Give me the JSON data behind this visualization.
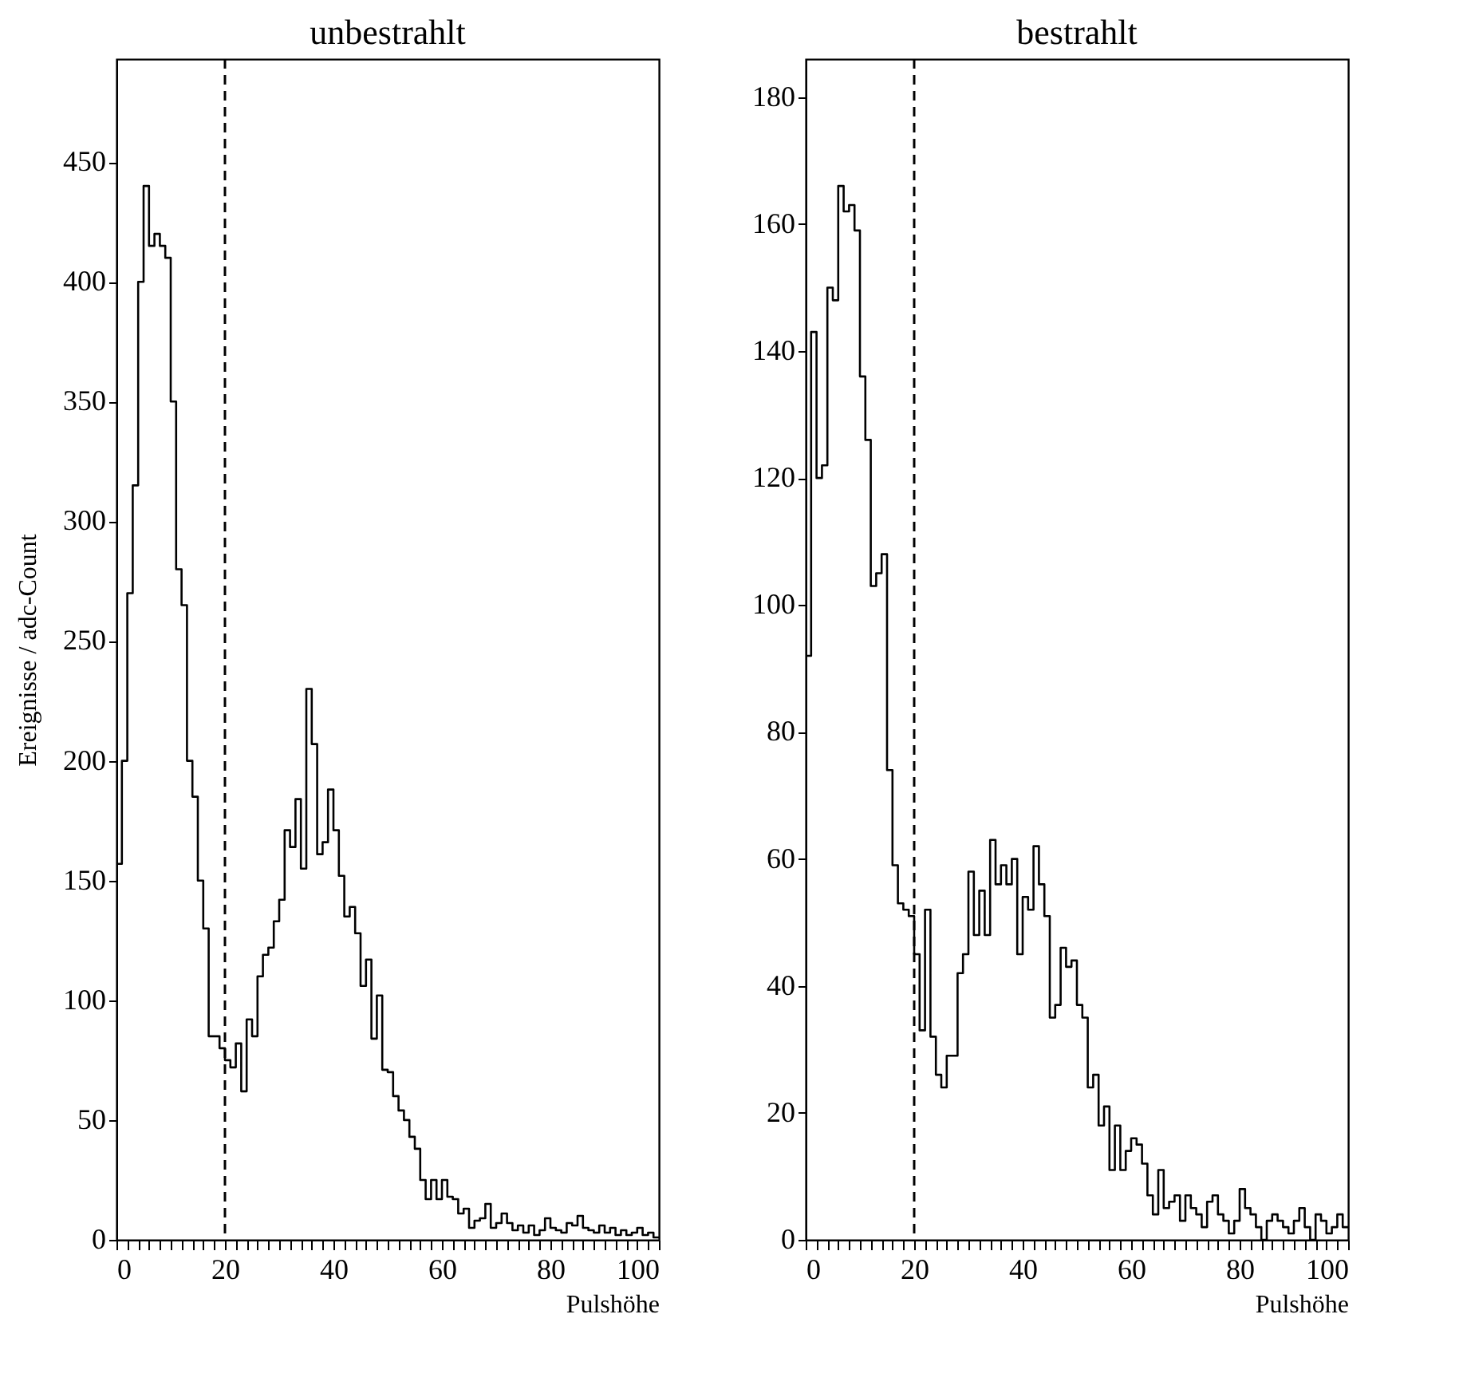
{
  "chart_data": [
    {
      "type": "histogram",
      "title": "unbestrahlt",
      "xlabel": "Pulshöhe",
      "ylabel": "Ereignisse / adc-Count",
      "color": "#000000",
      "grid": false,
      "bins": [
        0,
        1,
        2,
        3,
        4,
        5,
        6,
        7,
        8,
        9,
        10,
        11,
        12,
        13,
        14,
        15,
        16,
        17,
        18,
        19,
        20,
        21,
        22,
        23,
        24,
        25,
        26,
        27,
        28,
        29,
        30,
        31,
        32,
        33,
        34,
        35,
        36,
        37,
        38,
        39,
        40,
        41,
        42,
        43,
        44,
        45,
        46,
        47,
        48,
        49,
        50,
        51,
        52,
        53,
        54,
        55,
        56,
        57,
        58,
        59,
        60,
        61,
        62,
        63,
        64,
        65,
        66,
        67,
        68,
        69,
        70,
        71,
        72,
        73,
        74,
        75,
        76,
        77,
        78,
        79,
        80,
        81,
        82,
        83,
        84,
        85,
        86,
        87,
        88,
        89,
        90,
        91,
        92,
        93,
        94,
        95,
        96,
        97,
        98,
        99,
        100
      ],
      "values": [
        157,
        200,
        270,
        315,
        400,
        440,
        415,
        420,
        415,
        410,
        350,
        280,
        265,
        200,
        185,
        150,
        130,
        85,
        85,
        80,
        75,
        72,
        82,
        62,
        92,
        85,
        110,
        119,
        122,
        133,
        142,
        171,
        164,
        184,
        155,
        230,
        207,
        161,
        166,
        188,
        171,
        152,
        135,
        139,
        128,
        106,
        117,
        84,
        102,
        71,
        70,
        60,
        54,
        50,
        43,
        38,
        25,
        17,
        25,
        17,
        25,
        18,
        17,
        11,
        13,
        5,
        8,
        9,
        15,
        5,
        7,
        11,
        7,
        4,
        6,
        3,
        6,
        2,
        4,
        9,
        5,
        4,
        3,
        7,
        6,
        10,
        5,
        4,
        3,
        6,
        3,
        5,
        2,
        4,
        2,
        3,
        5,
        2,
        3,
        1
      ],
      "xlim": [
        0,
        100
      ],
      "xticks": [
        0,
        {
          "value": 2,
          "label": null
        },
        {
          "value": 4,
          "label": null
        },
        {
          "value": 6,
          "label": null
        },
        {
          "value": 8,
          "label": null
        },
        {
          "value": 10,
          "label": null
        },
        {
          "value": 12,
          "label": null
        },
        {
          "value": 14,
          "label": null
        },
        {
          "value": 16,
          "label": null
        },
        {
          "value": 18,
          "label": null
        },
        20,
        {
          "value": 22,
          "label": null
        },
        {
          "value": 24,
          "label": null
        },
        {
          "value": 26,
          "label": null
        },
        {
          "value": 28,
          "label": null
        },
        {
          "value": 30,
          "label": null
        },
        {
          "value": 32,
          "label": null
        },
        {
          "value": 34,
          "label": null
        },
        {
          "value": 36,
          "label": null
        },
        {
          "value": 38,
          "label": null
        },
        40,
        {
          "value": 42,
          "label": null
        },
        {
          "value": 44,
          "label": null
        },
        {
          "value": 46,
          "label": null
        },
        {
          "value": 48,
          "label": null
        },
        {
          "value": 50,
          "label": null
        },
        {
          "value": 52,
          "label": null
        },
        {
          "value": 54,
          "label": null
        },
        {
          "value": 56,
          "label": null
        },
        {
          "value": 58,
          "label": null
        },
        60,
        {
          "value": 62,
          "label": null
        },
        {
          "value": 64,
          "label": null
        },
        {
          "value": 66,
          "label": null
        },
        {
          "value": 68,
          "label": null
        },
        {
          "value": 70,
          "label": null
        },
        {
          "value": 72,
          "label": null
        },
        {
          "value": 74,
          "label": null
        },
        {
          "value": 76,
          "label": null
        },
        {
          "value": 78,
          "label": null
        },
        80,
        {
          "value": 82,
          "label": null
        },
        {
          "value": 84,
          "label": null
        },
        {
          "value": 86,
          "label": null
        },
        {
          "value": 88,
          "label": null
        },
        {
          "value": 90,
          "label": null
        },
        {
          "value": 92,
          "label": null
        },
        {
          "value": 94,
          "label": null
        },
        {
          "value": 96,
          "label": null
        },
        {
          "value": 98,
          "label": null
        },
        100
      ],
      "ylim": [
        0,
        493
      ],
      "yticks": [
        0,
        50,
        100,
        150,
        200,
        250,
        300,
        350,
        400,
        450
      ],
      "ref_lines": [
        {
          "axis": "x",
          "value": 20,
          "line_style": "dashed"
        }
      ]
    },
    {
      "type": "histogram",
      "title": "bestrahlt",
      "xlabel": "Pulshöhe",
      "color": "#000000",
      "grid": false,
      "bins": [
        0,
        1,
        2,
        3,
        4,
        5,
        6,
        7,
        8,
        9,
        10,
        11,
        12,
        13,
        14,
        15,
        16,
        17,
        18,
        19,
        20,
        21,
        22,
        23,
        24,
        25,
        26,
        27,
        28,
        29,
        30,
        31,
        32,
        33,
        34,
        35,
        36,
        37,
        38,
        39,
        40,
        41,
        42,
        43,
        44,
        45,
        46,
        47,
        48,
        49,
        50,
        51,
        52,
        53,
        54,
        55,
        56,
        57,
        58,
        59,
        60,
        61,
        62,
        63,
        64,
        65,
        66,
        67,
        68,
        69,
        70,
        71,
        72,
        73,
        74,
        75,
        76,
        77,
        78,
        79,
        80,
        81,
        82,
        83,
        84,
        85,
        86,
        87,
        88,
        89,
        90,
        91,
        92,
        93,
        94,
        95,
        96,
        97,
        98,
        99,
        100
      ],
      "values": [
        92,
        143,
        120,
        122,
        150,
        148,
        166,
        162,
        163,
        159,
        136,
        126,
        103,
        105,
        108,
        74,
        59,
        53,
        52,
        51,
        45,
        33,
        52,
        32,
        26,
        24,
        29,
        29,
        42,
        45,
        58,
        48,
        55,
        48,
        63,
        56,
        59,
        56,
        60,
        45,
        54,
        52,
        62,
        56,
        51,
        35,
        37,
        46,
        43,
        44,
        37,
        35,
        24,
        26,
        18,
        21,
        11,
        18,
        11,
        14,
        16,
        15,
        12,
        7,
        4,
        11,
        5,
        6,
        7,
        3,
        7,
        5,
        4,
        2,
        6,
        7,
        4,
        3,
        1,
        3,
        8,
        5,
        4,
        2,
        0,
        3,
        4,
        3,
        2,
        1,
        3,
        5,
        2,
        0,
        4,
        3,
        1,
        2,
        4,
        2
      ],
      "xlim": [
        0,
        100
      ],
      "xticks": [
        0,
        {
          "value": 2,
          "label": null
        },
        {
          "value": 4,
          "label": null
        },
        {
          "value": 6,
          "label": null
        },
        {
          "value": 8,
          "label": null
        },
        {
          "value": 10,
          "label": null
        },
        {
          "value": 12,
          "label": null
        },
        {
          "value": 14,
          "label": null
        },
        {
          "value": 16,
          "label": null
        },
        {
          "value": 18,
          "label": null
        },
        20,
        {
          "value": 22,
          "label": null
        },
        {
          "value": 24,
          "label": null
        },
        {
          "value": 26,
          "label": null
        },
        {
          "value": 28,
          "label": null
        },
        {
          "value": 30,
          "label": null
        },
        {
          "value": 32,
          "label": null
        },
        {
          "value": 34,
          "label": null
        },
        {
          "value": 36,
          "label": null
        },
        {
          "value": 38,
          "label": null
        },
        40,
        {
          "value": 42,
          "label": null
        },
        {
          "value": 44,
          "label": null
        },
        {
          "value": 46,
          "label": null
        },
        {
          "value": 48,
          "label": null
        },
        {
          "value": 50,
          "label": null
        },
        {
          "value": 52,
          "label": null
        },
        {
          "value": 54,
          "label": null
        },
        {
          "value": 56,
          "label": null
        },
        {
          "value": 58,
          "label": null
        },
        60,
        {
          "value": 62,
          "label": null
        },
        {
          "value": 64,
          "label": null
        },
        {
          "value": 66,
          "label": null
        },
        {
          "value": 68,
          "label": null
        },
        {
          "value": 70,
          "label": null
        },
        {
          "value": 72,
          "label": null
        },
        {
          "value": 74,
          "label": null
        },
        {
          "value": 76,
          "label": null
        },
        {
          "value": 78,
          "label": null
        },
        80,
        {
          "value": 82,
          "label": null
        },
        {
          "value": 84,
          "label": null
        },
        {
          "value": 86,
          "label": null
        },
        {
          "value": 88,
          "label": null
        },
        {
          "value": 90,
          "label": null
        },
        {
          "value": 92,
          "label": null
        },
        {
          "value": 94,
          "label": null
        },
        {
          "value": 96,
          "label": null
        },
        {
          "value": 98,
          "label": null
        },
        100
      ],
      "ylim": [
        0,
        186
      ],
      "yticks": [
        0,
        20,
        40,
        60,
        80,
        100,
        120,
        140,
        160,
        180
      ],
      "ref_lines": [
        {
          "axis": "x",
          "value": 20,
          "line_style": "dashed"
        }
      ]
    }
  ]
}
